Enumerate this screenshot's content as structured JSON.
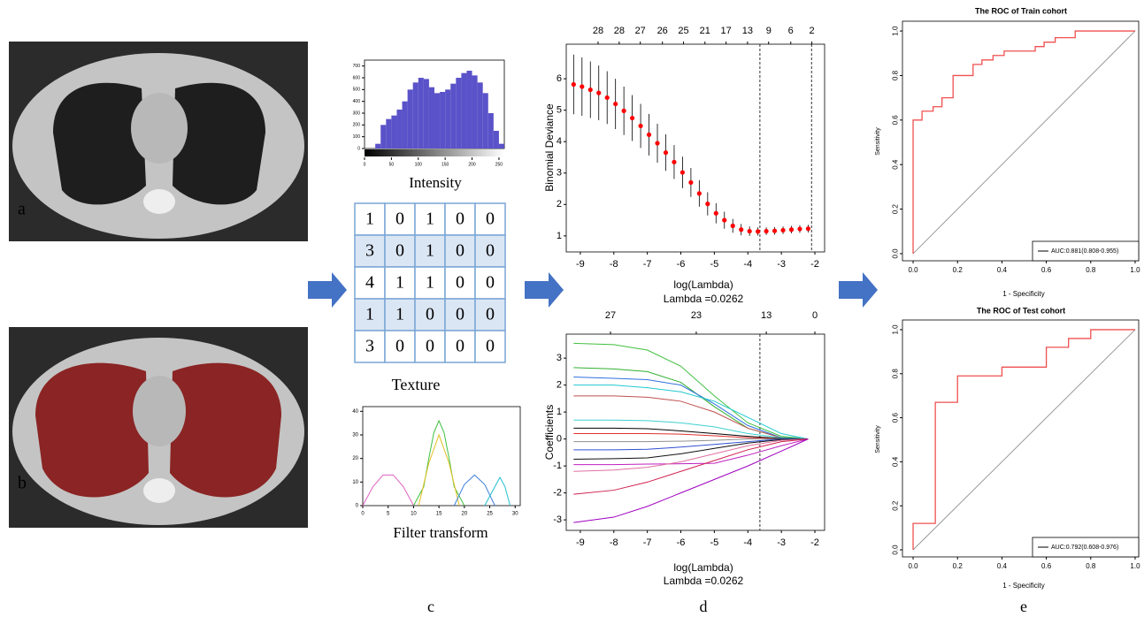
{
  "panels": [
    "a",
    "b",
    "c",
    "d",
    "e"
  ],
  "texture": {
    "rows": [
      [
        1,
        0,
        1,
        0,
        0
      ],
      [
        3,
        0,
        1,
        0,
        0
      ],
      [
        4,
        1,
        1,
        0,
        0
      ],
      [
        1,
        1,
        0,
        0,
        0
      ],
      [
        3,
        0,
        0,
        0,
        0
      ]
    ],
    "label": "Texture"
  },
  "chart_data": [
    {
      "type": "histogram",
      "xlabel": "Intensity",
      "bins": [
        0,
        10,
        20,
        30,
        40,
        50,
        60,
        70,
        80,
        90,
        100,
        110,
        120,
        130,
        140,
        150,
        160,
        170,
        180,
        190,
        200,
        210,
        220,
        230,
        240,
        250,
        260
      ],
      "values": [
        0,
        0,
        40,
        200,
        250,
        280,
        330,
        400,
        500,
        560,
        600,
        590,
        520,
        470,
        480,
        500,
        550,
        600,
        640,
        660,
        620,
        560,
        470,
        300,
        150,
        40
      ],
      "color": "#5a52c8",
      "xlim": [
        0,
        260
      ],
      "ylim": [
        0,
        750
      ],
      "xticks": [
        0,
        50,
        100,
        150,
        200,
        250
      ],
      "yticks": [
        0,
        100,
        200,
        300,
        400,
        500,
        600,
        700
      ]
    },
    {
      "type": "line",
      "xlabel": "Filter transform",
      "xlim": [
        0,
        31
      ],
      "ylim": [
        0,
        42
      ],
      "xticks": [
        0,
        5,
        10,
        15,
        20,
        25,
        30
      ],
      "yticks": [
        0,
        10,
        20,
        30,
        40
      ],
      "series": [
        {
          "color": "#e060c0",
          "x": [
            0,
            2,
            4,
            6,
            8,
            10
          ],
          "values": [
            0,
            8,
            13,
            13,
            8,
            0
          ]
        },
        {
          "color": "#40c040",
          "x": [
            10,
            12,
            13,
            14,
            15,
            16,
            17,
            18,
            20
          ],
          "values": [
            0,
            8,
            20,
            31,
            36,
            31,
            20,
            8,
            0
          ]
        },
        {
          "color": "#e0c020",
          "x": [
            11,
            13,
            15,
            17,
            19
          ],
          "values": [
            0,
            18,
            30,
            18,
            0
          ]
        },
        {
          "color": "#4080e0",
          "x": [
            18,
            20,
            22,
            24,
            26
          ],
          "values": [
            0,
            9,
            13,
            9,
            0
          ]
        },
        {
          "color": "#20c0d0",
          "x": [
            24,
            26,
            27,
            28,
            29
          ],
          "values": [
            0,
            8,
            12,
            8,
            0
          ]
        }
      ]
    },
    {
      "type": "errorbar",
      "xlabel": "log(Lambda)",
      "subtitle": "Lambda =0.0262",
      "ylabel": "Binomial Deviance",
      "xlim": [
        -9.42,
        -1.71
      ],
      "ylim": [
        0.49,
        7.1
      ],
      "xticks": [
        -9,
        -8,
        -7,
        -6,
        -5,
        -4,
        -3,
        -2
      ],
      "yticks": [
        1,
        2,
        3,
        4,
        5,
        6
      ],
      "top_ticks": [
        {
          "value": -8.47,
          "label": "28"
        },
        {
          "value": -7.84,
          "label": "28"
        },
        {
          "value": -7.21,
          "label": "27"
        },
        {
          "value": -6.55,
          "label": "26"
        },
        {
          "value": -5.92,
          "label": "25"
        },
        {
          "value": -5.28,
          "label": "21"
        },
        {
          "value": -4.65,
          "label": "17"
        },
        {
          "value": -4.01,
          "label": "13"
        },
        {
          "value": -3.38,
          "label": "9"
        },
        {
          "value": -2.72,
          "label": "6"
        },
        {
          "value": -2.09,
          "label": "2"
        }
      ],
      "vlines": [
        -3.64,
        -2.1
      ],
      "series": [
        {
          "color": "#ff0000",
          "x": [
            -9.2,
            -8.95,
            -8.7,
            -8.45,
            -8.2,
            -7.95,
            -7.7,
            -7.45,
            -7.2,
            -6.95,
            -6.7,
            -6.45,
            -6.2,
            -5.95,
            -5.7,
            -5.45,
            -5.2,
            -4.95,
            -4.7,
            -4.45,
            -4.2,
            -3.95,
            -3.7,
            -3.45,
            -3.2,
            -2.95,
            -2.7,
            -2.45,
            -2.2
          ],
          "values": [
            5.82,
            5.75,
            5.65,
            5.55,
            5.4,
            5.2,
            4.98,
            4.75,
            4.5,
            4.22,
            3.95,
            3.65,
            3.35,
            3.02,
            2.7,
            2.35,
            2.02,
            1.72,
            1.5,
            1.32,
            1.2,
            1.15,
            1.14,
            1.15,
            1.16,
            1.18,
            1.2,
            1.22,
            1.23
          ],
          "errors": [
            0.95,
            0.93,
            0.9,
            0.87,
            0.84,
            0.8,
            0.77,
            0.73,
            0.7,
            0.66,
            0.62,
            0.58,
            0.54,
            0.5,
            0.46,
            0.42,
            0.37,
            0.32,
            0.27,
            0.22,
            0.18,
            0.15,
            0.13,
            0.12,
            0.12,
            0.12,
            0.12,
            0.12,
            0.12
          ]
        }
      ]
    },
    {
      "type": "line",
      "xlabel": "log(Lambda)",
      "subtitle": "Lambda =0.0262",
      "ylabel": "Coefficients",
      "xlim": [
        -9.42,
        -1.71
      ],
      "ylim": [
        -3.39,
        3.89
      ],
      "xticks": [
        -9,
        -8,
        -7,
        -6,
        -5,
        -4,
        -3,
        -2
      ],
      "yticks": [
        -3,
        -2,
        -1,
        0,
        1,
        2,
        3
      ],
      "top_ticks": [
        {
          "value": -8.1,
          "label": "27"
        },
        {
          "value": -5.54,
          "label": "23"
        },
        {
          "value": -3.45,
          "label": "13"
        },
        {
          "value": -2,
          "label": "0"
        }
      ],
      "vlines": [
        -3.64
      ],
      "x": [
        -9.2,
        -8,
        -7,
        -6,
        -5,
        -4,
        -3,
        -2.2
      ],
      "series": [
        {
          "color": "#40c040",
          "values": [
            3.55,
            3.5,
            3.3,
            2.7,
            1.6,
            0.6,
            0.1,
            0
          ]
        },
        {
          "color": "#30b030",
          "values": [
            2.65,
            2.6,
            2.5,
            2.1,
            1.2,
            0.4,
            0.05,
            0
          ]
        },
        {
          "color": "#3070e0",
          "values": [
            2.3,
            2.25,
            2.2,
            2.0,
            1.3,
            0.5,
            0.05,
            0
          ]
        },
        {
          "color": "#20c8d0",
          "values": [
            2.0,
            2.0,
            1.9,
            1.75,
            1.4,
            0.8,
            0.2,
            0
          ]
        },
        {
          "color": "#c05050",
          "values": [
            1.6,
            1.6,
            1.55,
            1.4,
            1.0,
            0.4,
            0.05,
            0
          ]
        },
        {
          "color": "#40d0d0",
          "values": [
            0.7,
            0.7,
            0.68,
            0.6,
            0.45,
            0.2,
            0.05,
            0
          ]
        },
        {
          "color": "#000000",
          "values": [
            0.4,
            0.4,
            0.38,
            0.3,
            0.2,
            0.1,
            0.02,
            0
          ]
        },
        {
          "color": "#e03030",
          "values": [
            0.2,
            0.2,
            0.2,
            0.18,
            0.12,
            0.05,
            0,
            0
          ]
        },
        {
          "color": "#909090",
          "values": [
            -0.1,
            -0.1,
            -0.1,
            -0.08,
            -0.05,
            0,
            0,
            0
          ]
        },
        {
          "color": "#3050d0",
          "values": [
            -0.4,
            -0.4,
            -0.38,
            -0.3,
            -0.2,
            -0.1,
            0,
            0
          ]
        },
        {
          "color": "#101010",
          "values": [
            -0.75,
            -0.73,
            -0.7,
            -0.55,
            -0.35,
            -0.15,
            -0.02,
            0
          ]
        },
        {
          "color": "#c020c0",
          "values": [
            -0.95,
            -0.95,
            -0.93,
            -0.92,
            -0.9,
            -0.6,
            -0.25,
            0
          ]
        },
        {
          "color": "#e070a0",
          "values": [
            -1.2,
            -1.15,
            -1.05,
            -0.85,
            -0.55,
            -0.25,
            -0.05,
            0
          ]
        },
        {
          "color": "#d02050",
          "values": [
            -2.05,
            -1.9,
            -1.6,
            -1.2,
            -0.8,
            -0.4,
            -0.1,
            0
          ]
        },
        {
          "color": "#a000c0",
          "values": [
            -3.1,
            -2.9,
            -2.5,
            -2.0,
            -1.5,
            -1.0,
            -0.45,
            0
          ]
        }
      ]
    },
    {
      "type": "line",
      "title": "The ROC of Train cohort",
      "xlabel": "1 - Specificity",
      "ylabel": "Sensitivity",
      "legend": "lower right",
      "xlim": [
        -0.048,
        1.016
      ],
      "ylim": [
        -0.032,
        1.044
      ],
      "xticks": [
        {
          "value": 0,
          "label": "0.0"
        },
        0.2,
        0.4,
        0.6,
        0.8,
        {
          "value": 1,
          "label": "1.0"
        }
      ],
      "yticks": [
        {
          "value": 0,
          "label": "0.0"
        },
        0.2,
        0.4,
        0.6,
        0.8,
        {
          "value": 1,
          "label": "1.0"
        }
      ],
      "series": [
        {
          "color": "#999999",
          "x": [
            0,
            1
          ],
          "values": [
            0,
            1
          ]
        },
        {
          "name": "AUC:0.881(0.808-0.955)",
          "color": "#f05050",
          "x": [
            0,
            0,
            0.04,
            0.04,
            0.09,
            0.09,
            0.13,
            0.13,
            0.18,
            0.18,
            0.27,
            0.27,
            0.31,
            0.31,
            0.36,
            0.36,
            0.41,
            0.41,
            0.55,
            0.55,
            0.59,
            0.59,
            0.64,
            0.64,
            0.73,
            0.73,
            1
          ],
          "values": [
            0,
            0.6,
            0.6,
            0.64,
            0.64,
            0.66,
            0.66,
            0.7,
            0.7,
            0.8,
            0.8,
            0.85,
            0.85,
            0.87,
            0.87,
            0.89,
            0.89,
            0.91,
            0.91,
            0.93,
            0.93,
            0.95,
            0.95,
            0.97,
            0.97,
            1,
            1
          ]
        }
      ]
    },
    {
      "type": "line",
      "title": "The ROC of Test cohort",
      "xlabel": "1 - Specificity",
      "ylabel": "Sensitivity",
      "legend": "lower right",
      "xlim": [
        -0.048,
        1.016
      ],
      "ylim": [
        -0.032,
        1.044
      ],
      "xticks": [
        {
          "value": 0,
          "label": "0.0"
        },
        0.2,
        0.4,
        0.6,
        0.8,
        {
          "value": 1,
          "label": "1.0"
        }
      ],
      "yticks": [
        {
          "value": 0,
          "label": "0.0"
        },
        0.2,
        0.4,
        0.6,
        0.8,
        {
          "value": 1,
          "label": "1.0"
        }
      ],
      "series": [
        {
          "color": "#999999",
          "x": [
            0,
            1
          ],
          "values": [
            0,
            1
          ]
        },
        {
          "name": "AUC:0.792(0.608-0.976)",
          "color": "#f05050",
          "x": [
            0,
            0,
            0.1,
            0.1,
            0.2,
            0.2,
            0.4,
            0.4,
            0.6,
            0.6,
            0.7,
            0.7,
            0.8,
            0.8,
            1
          ],
          "values": [
            0,
            0.12,
            0.12,
            0.67,
            0.67,
            0.79,
            0.79,
            0.83,
            0.83,
            0.92,
            0.92,
            0.96,
            0.96,
            1,
            1
          ]
        }
      ]
    }
  ]
}
